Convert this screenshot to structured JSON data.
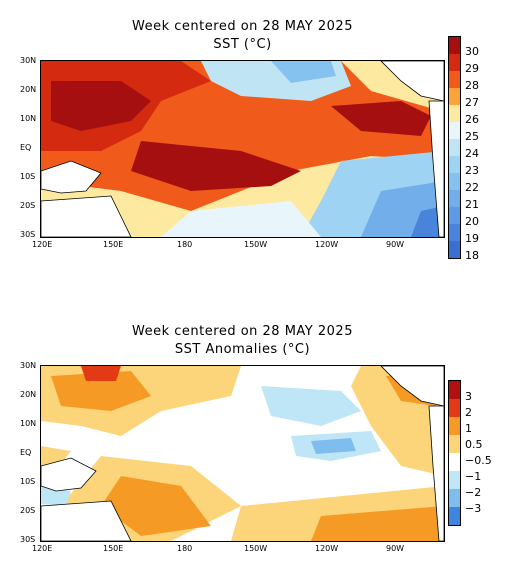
{
  "panels": [
    {
      "title_line1": "Week centered on 28 MAY 2025",
      "title_line2": "SST (°C)",
      "lat_labels": [
        "30N",
        "20N",
        "10N",
        "EQ",
        "10S",
        "20S",
        "30S"
      ],
      "lon_labels": [
        "120E",
        "150E",
        "180",
        "150W",
        "120W",
        "90W"
      ],
      "colorbar_labels": [
        "30",
        "29",
        "28",
        "27",
        "26",
        "25",
        "24",
        "23",
        "22",
        "21",
        "20",
        "19",
        "18"
      ],
      "colorbar_colors": [
        "#a50f0f",
        "#d42a10",
        "#f05a1a",
        "#f9a43a",
        "#fde9a0",
        "#e8f6fb",
        "#bfe5f5",
        "#9fd3f3",
        "#86c2ef",
        "#72aeea",
        "#5d99e4",
        "#4883dc",
        "#3a6fd2"
      ]
    },
    {
      "title_line1": "Week centered on 28 MAY 2025",
      "title_line2": "SST Anomalies (°C)",
      "lat_labels": [
        "30N",
        "20N",
        "10N",
        "EQ",
        "10S",
        "20S",
        "30S"
      ],
      "lon_labels": [
        "120E",
        "150E",
        "180",
        "150W",
        "120W",
        "90W"
      ],
      "colorbar_labels": [
        "3",
        "2",
        "1",
        "0.5",
        "−0.5",
        "−1",
        "−2",
        "−3"
      ],
      "colorbar_colors": [
        "#b01010",
        "#e23a14",
        "#f59a24",
        "#fcd57a",
        "#ffffff",
        "#bfe6f7",
        "#7fbdee",
        "#3f85df"
      ]
    }
  ]
}
